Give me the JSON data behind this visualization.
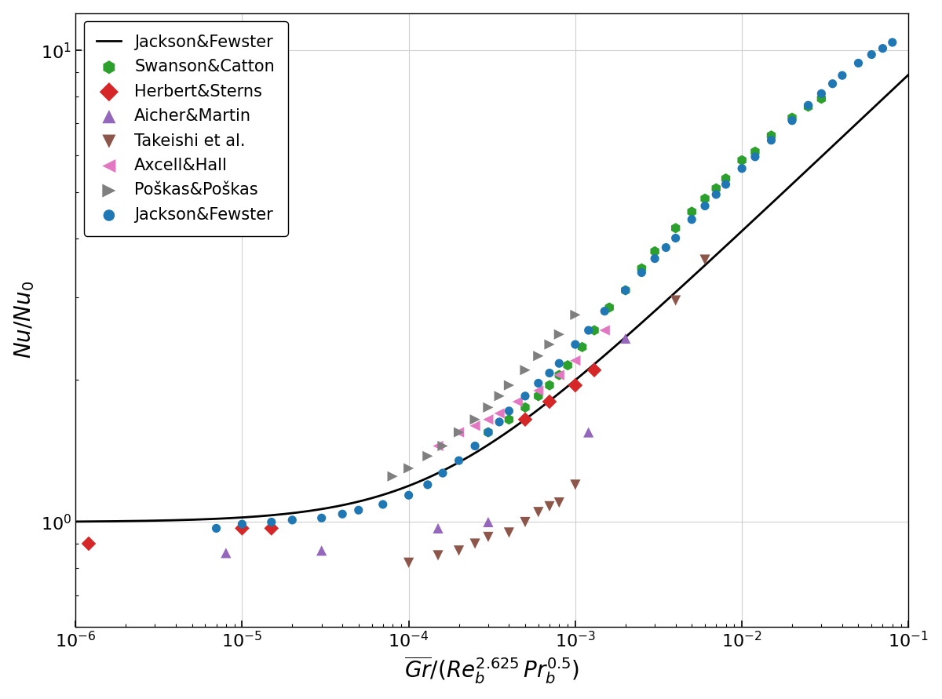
{
  "xlim": [
    1e-06,
    0.1
  ],
  "ylim": [
    0.6,
    12
  ],
  "background_color": "#ffffff",
  "grid_color": "#cccccc",
  "line_color": "#000000",
  "swanson_catton": {
    "x": [
      0.0003,
      0.0004,
      0.0005,
      0.0006,
      0.0007,
      0.0008,
      0.0009,
      0.0011,
      0.0013,
      0.0016,
      0.002,
      0.0025,
      0.003,
      0.004,
      0.005,
      0.006,
      0.007,
      0.008,
      0.01,
      0.012,
      0.015,
      0.02,
      0.025,
      0.03
    ],
    "y": [
      1.55,
      1.65,
      1.75,
      1.85,
      1.95,
      2.05,
      2.15,
      2.35,
      2.55,
      2.85,
      3.1,
      3.45,
      3.75,
      4.2,
      4.55,
      4.85,
      5.1,
      5.35,
      5.85,
      6.1,
      6.6,
      7.2,
      7.6,
      7.9
    ],
    "color": "#2ca02c",
    "marker": "h",
    "label": "Swanson&Catton",
    "size": 90
  },
  "herbert_sterns": {
    "x": [
      1.2e-06,
      1e-05,
      1.5e-05,
      0.0005,
      0.0007,
      0.001,
      0.0013
    ],
    "y": [
      0.9,
      0.97,
      0.97,
      1.65,
      1.8,
      1.95,
      2.1
    ],
    "color": "#d62728",
    "marker": "D",
    "label": "Herbert&Sterns",
    "size": 90
  },
  "aicher_martin": {
    "x": [
      8e-06,
      3e-05,
      0.00015,
      0.0003,
      0.0012,
      0.002
    ],
    "y": [
      0.86,
      0.87,
      0.97,
      1.0,
      1.55,
      2.45
    ],
    "color": "#9467bd",
    "marker": "^",
    "label": "Aicher&Martin",
    "size": 90
  },
  "takeishi": {
    "x": [
      0.0001,
      0.00015,
      0.0002,
      0.00025,
      0.0003,
      0.0004,
      0.0005,
      0.0006,
      0.0007,
      0.0008,
      0.001,
      0.004,
      0.006
    ],
    "y": [
      0.82,
      0.85,
      0.87,
      0.9,
      0.93,
      0.95,
      1.0,
      1.05,
      1.08,
      1.1,
      1.2,
      2.95,
      3.6
    ],
    "color": "#8c564b",
    "marker": "v",
    "label": "Takeishi et al.",
    "size": 90
  },
  "axcell_hall": {
    "x": [
      0.00015,
      0.0002,
      0.00025,
      0.0003,
      0.00035,
      0.00045,
      0.0006,
      0.0008,
      0.001,
      0.0015
    ],
    "y": [
      1.45,
      1.55,
      1.6,
      1.65,
      1.7,
      1.8,
      1.9,
      2.05,
      2.2,
      2.55
    ],
    "color": "#e377c2",
    "marker": "<",
    "label": "Axcell&Hall",
    "size": 90
  },
  "poskas": {
    "x": [
      8e-05,
      0.0001,
      0.00013,
      0.00016,
      0.0002,
      0.00025,
      0.0003,
      0.00035,
      0.0004,
      0.0005,
      0.0006,
      0.0007,
      0.0008,
      0.001
    ],
    "y": [
      1.25,
      1.3,
      1.38,
      1.45,
      1.55,
      1.65,
      1.75,
      1.85,
      1.95,
      2.1,
      2.25,
      2.38,
      2.5,
      2.75
    ],
    "color": "#7f7f7f",
    "marker": ">",
    "label": "Poškas&Poškas",
    "size": 90
  },
  "jackson_fewster_data": {
    "x": [
      7e-06,
      1e-05,
      1.5e-05,
      2e-05,
      3e-05,
      4e-05,
      5e-05,
      7e-05,
      0.0001,
      0.00013,
      0.00016,
      0.0002,
      0.00025,
      0.0003,
      0.00035,
      0.0004,
      0.0005,
      0.0006,
      0.0007,
      0.0008,
      0.001,
      0.0012,
      0.0015,
      0.002,
      0.0025,
      0.003,
      0.0035,
      0.004,
      0.005,
      0.006,
      0.007,
      0.008,
      0.01,
      0.012,
      0.015,
      0.02,
      0.025,
      0.03,
      0.035,
      0.04,
      0.05,
      0.06,
      0.07,
      0.08
    ],
    "y": [
      0.97,
      0.99,
      1.0,
      1.01,
      1.02,
      1.04,
      1.06,
      1.09,
      1.14,
      1.2,
      1.27,
      1.35,
      1.45,
      1.55,
      1.63,
      1.72,
      1.85,
      1.97,
      2.07,
      2.17,
      2.38,
      2.55,
      2.8,
      3.1,
      3.38,
      3.62,
      3.82,
      4.0,
      4.38,
      4.68,
      4.95,
      5.2,
      5.62,
      5.95,
      6.45,
      7.1,
      7.65,
      8.1,
      8.5,
      8.85,
      9.4,
      9.8,
      10.1,
      10.4
    ],
    "color": "#1f77b4",
    "marker": "o",
    "label": "Jackson&Fewster",
    "size": 65
  }
}
